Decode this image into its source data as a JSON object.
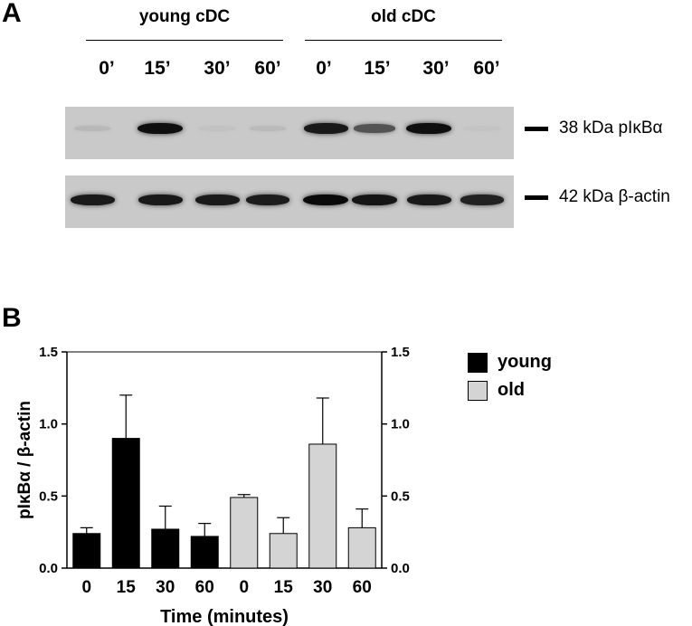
{
  "panel_a": {
    "label": "A",
    "groups": [
      {
        "name": "young cDC",
        "lanes": [
          "0’",
          "15’",
          "30’",
          "60’"
        ]
      },
      {
        "name": "old cDC",
        "lanes": [
          "0’",
          "15’",
          "30’",
          "60’"
        ]
      }
    ],
    "blots": [
      {
        "marker": "38 kDa pIκBα",
        "band_intensity": [
          0.08,
          0.95,
          0.03,
          0.07,
          0.9,
          0.6,
          0.95,
          0.02
        ]
      },
      {
        "marker": "42 kDa β-actin",
        "band_intensity": [
          0.9,
          0.9,
          0.9,
          0.88,
          0.98,
          0.92,
          0.9,
          0.85
        ]
      }
    ]
  },
  "panel_b": {
    "label": "B",
    "legend": [
      {
        "label": "young",
        "color": "#000000"
      },
      {
        "label": "old",
        "color": "#d4d4d4"
      }
    ]
  },
  "chart_data": {
    "type": "bar",
    "categories": [
      "0",
      "15",
      "30",
      "60",
      "0",
      "15",
      "30",
      "60"
    ],
    "groups": [
      "young",
      "young",
      "young",
      "young",
      "old",
      "old",
      "old",
      "old"
    ],
    "values": [
      0.24,
      0.9,
      0.27,
      0.22,
      0.49,
      0.24,
      0.86,
      0.28
    ],
    "errors": [
      0.04,
      0.3,
      0.16,
      0.09,
      0.02,
      0.11,
      0.32,
      0.13
    ],
    "colors": [
      "#000000",
      "#000000",
      "#000000",
      "#000000",
      "#d4d4d4",
      "#d4d4d4",
      "#d4d4d4",
      "#d4d4d4"
    ],
    "xlabel": "Time (minutes)",
    "ylabel": "pIκBα / β-actin",
    "ylim": [
      0,
      1.5
    ],
    "yticks": [
      "0.0",
      "0.5",
      "1.0",
      "1.5"
    ],
    "right_axis": true,
    "grid": false,
    "legend_position": "right"
  }
}
